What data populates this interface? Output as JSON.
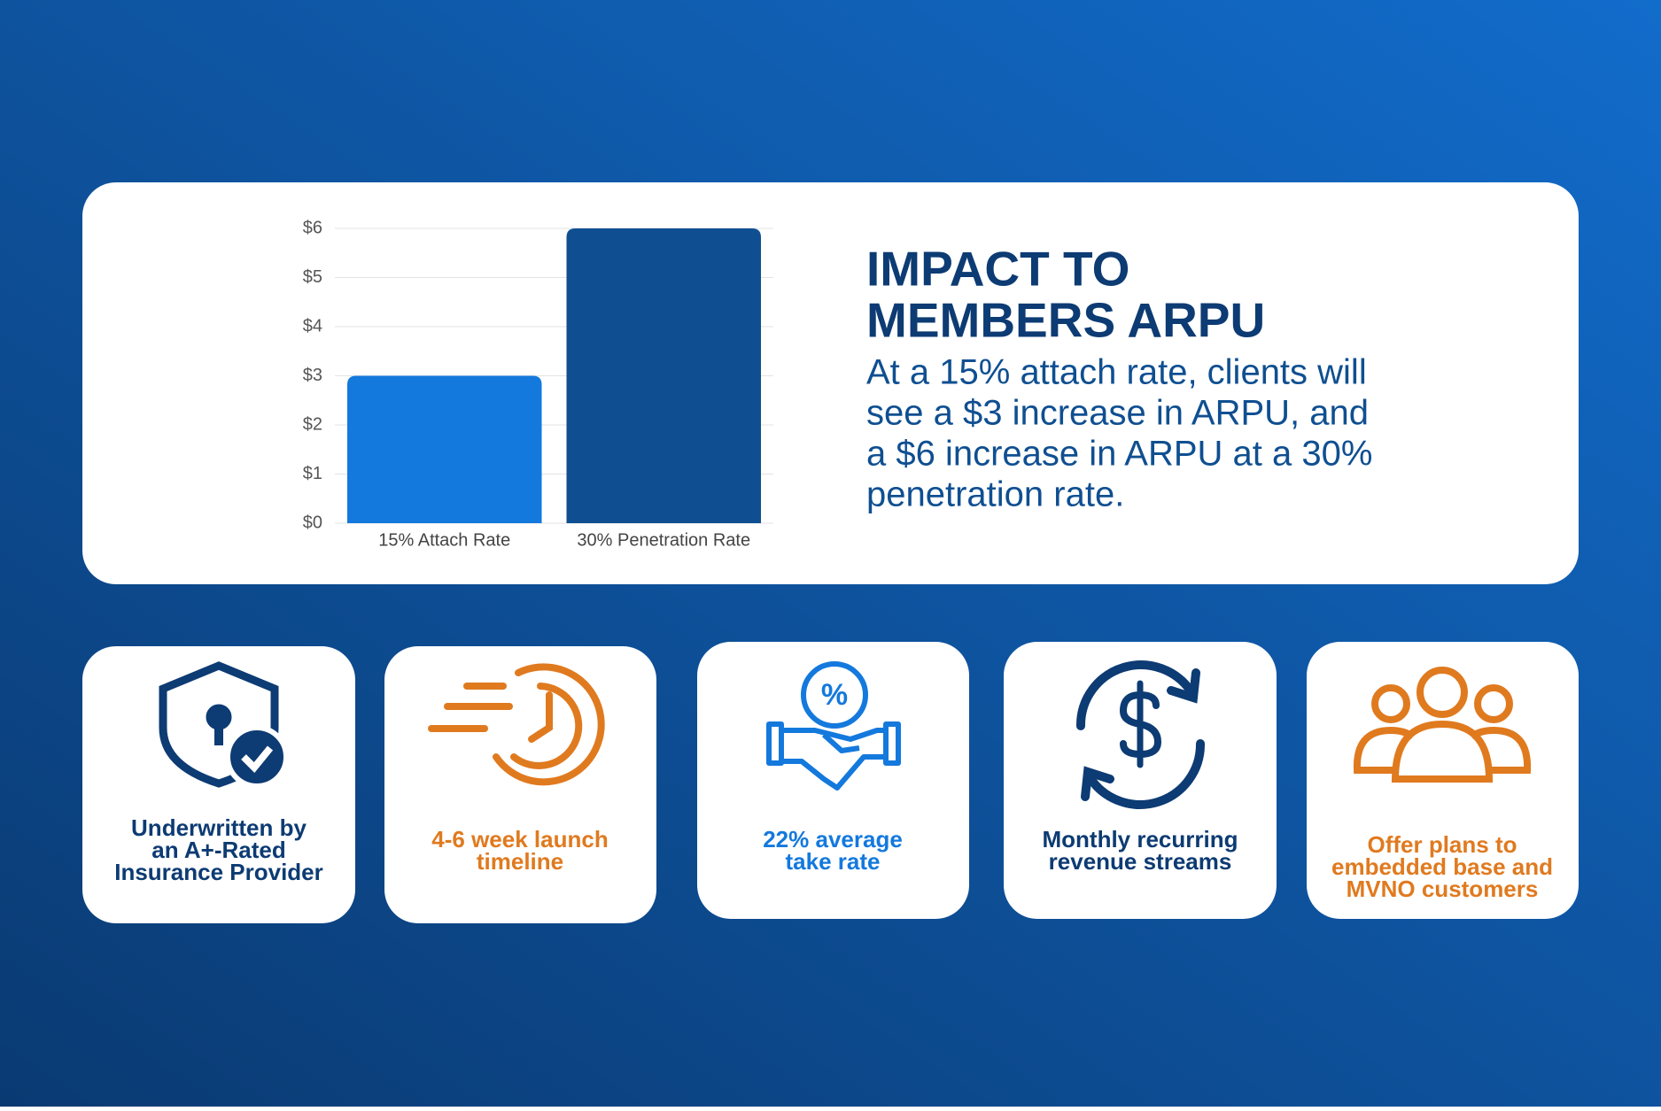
{
  "chart_data": {
    "type": "bar",
    "categories": [
      "15% Attach Rate",
      "30% Penetration Rate"
    ],
    "values": [
      3,
      6
    ],
    "colors": [
      "#1479dd",
      "#0f4f91"
    ],
    "ylim": [
      0,
      6
    ],
    "yticks": [
      {
        "value": 0,
        "label": "$0"
      },
      {
        "value": 1,
        "label": "$1"
      },
      {
        "value": 2,
        "label": "$2"
      },
      {
        "value": 3,
        "label": "$3"
      },
      {
        "value": 4,
        "label": "$4"
      },
      {
        "value": 5,
        "label": "$5"
      },
      {
        "value": 6,
        "label": "$6"
      }
    ],
    "grid": true
  },
  "headline": {
    "title_lines": [
      "IMPACT TO",
      "MEMBERS ARPU"
    ],
    "body_lines": [
      "At a 15% attach rate, clients will",
      "see a $3 increase in ARPU, and",
      "a $6 increase in ARPU at a 30%",
      "penetration rate."
    ]
  },
  "cards": [
    {
      "lines": [
        "Underwritten by",
        "an A+-Rated",
        "Insurance Provider"
      ],
      "color": "#0d3b73"
    },
    {
      "lines": [
        "4-6 week launch",
        "timeline"
      ],
      "color": "#e07a1f"
    },
    {
      "lines": [
        "22% average",
        "take rate"
      ],
      "color": "#1479dd"
    },
    {
      "lines": [
        "Monthly recurring",
        "revenue streams"
      ],
      "color": "#0d3b73"
    },
    {
      "lines": [
        "Offer plans to",
        "embedded base and",
        "MVNO customers"
      ],
      "color": "#e07a1f"
    }
  ]
}
